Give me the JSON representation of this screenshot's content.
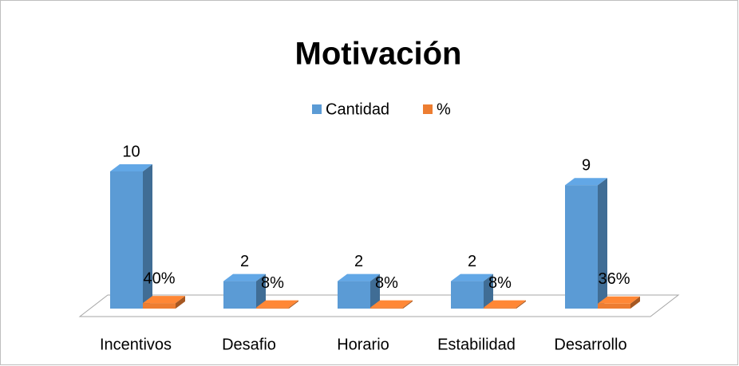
{
  "chart_data": {
    "type": "bar",
    "title": "Motivación",
    "categories": [
      "Incentivos",
      "Desafio",
      "Horario",
      "Estabilidad",
      "Desarrollo"
    ],
    "series": [
      {
        "name": "Cantidad",
        "color": "#5b9bd5",
        "values": [
          10,
          2,
          2,
          2,
          9
        ]
      },
      {
        "name": "%",
        "color": "#ed7d31",
        "values": [
          0.4,
          0.08,
          0.08,
          0.08,
          0.36
        ],
        "value_labels": [
          "40%",
          "8%",
          "8%",
          "8%",
          "36%"
        ]
      }
    ],
    "ylim": [
      0,
      10
    ],
    "legend": "top"
  }
}
